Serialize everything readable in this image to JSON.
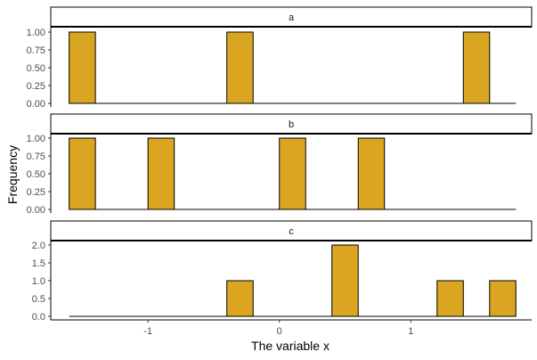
{
  "chart_data": {
    "type": "bar",
    "xlabel": "The variable x",
    "ylabel": "Frequency",
    "bar_color": "#DAA520",
    "bar_outline": "#000000",
    "bin_width": 0.2,
    "xlim": [
      -1.74,
      1.92
    ],
    "x_ticks": [
      -1,
      0,
      1
    ],
    "x_tick_labels": [
      "-1",
      "0",
      "1"
    ],
    "grid": false,
    "panels": [
      {
        "strip": "a",
        "ylim": [
          0,
          1
        ],
        "y_ticks": [
          0,
          0.25,
          0.5,
          0.75,
          1
        ],
        "y_tick_labels": [
          "0.00",
          "0.25",
          "0.50",
          "0.75",
          "1.00"
        ],
        "bars": [
          {
            "x": -1.5,
            "count": 1
          },
          {
            "x": -0.3,
            "count": 1
          },
          {
            "x": 1.5,
            "count": 1
          }
        ]
      },
      {
        "strip": "b",
        "ylim": [
          0,
          1
        ],
        "y_ticks": [
          0,
          0.25,
          0.5,
          0.75,
          1
        ],
        "y_tick_labels": [
          "0.00",
          "0.25",
          "0.50",
          "0.75",
          "1.00"
        ],
        "bars": [
          {
            "x": -1.5,
            "count": 1
          },
          {
            "x": -0.9,
            "count": 1
          },
          {
            "x": 0.1,
            "count": 1
          },
          {
            "x": 0.7,
            "count": 1
          }
        ]
      },
      {
        "strip": "c",
        "ylim": [
          0,
          2
        ],
        "y_ticks": [
          0,
          0.5,
          1,
          1.5,
          2
        ],
        "y_tick_labels": [
          "0.0",
          "0.5",
          "1.0",
          "1.5",
          "2.0"
        ],
        "bars": [
          {
            "x": -0.3,
            "count": 1
          },
          {
            "x": 0.5,
            "count": 2
          },
          {
            "x": 1.3,
            "count": 1
          },
          {
            "x": 1.7,
            "count": 1
          }
        ]
      }
    ]
  }
}
